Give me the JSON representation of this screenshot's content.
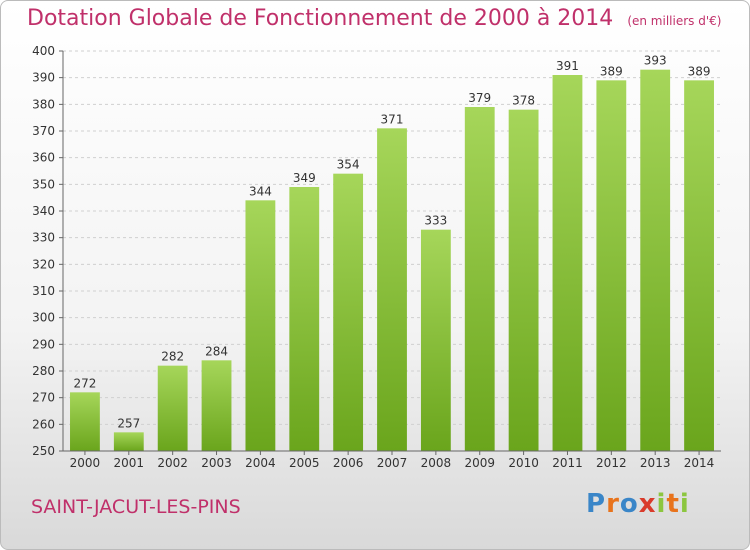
{
  "chart_data": {
    "type": "bar",
    "title": "Dotation Globale de Fonctionnement de 2000 à 2014",
    "subtitle": "(en milliers d'€)",
    "categories": [
      "2000",
      "2001",
      "2002",
      "2003",
      "2004",
      "2005",
      "2006",
      "2007",
      "2008",
      "2009",
      "2010",
      "2011",
      "2012",
      "2013",
      "2014"
    ],
    "values": [
      272,
      257,
      282,
      284,
      344,
      349,
      354,
      371,
      333,
      379,
      378,
      391,
      389,
      393,
      389
    ],
    "ylim": [
      250,
      400
    ],
    "ytick_step": 10,
    "grid": true,
    "bar_color": "#8cc63f"
  },
  "footer": {
    "commune": "SAINT-JACUT-LES-PINS",
    "logo_letters": [
      "P",
      "r",
      "o",
      "x",
      "i",
      "t",
      "i"
    ],
    "logo_colors": [
      "#3a86c8",
      "#e8731c",
      "#3a86c8",
      "#d93b2b",
      "#8cc63f",
      "#e8731c",
      "#8cc63f"
    ]
  }
}
